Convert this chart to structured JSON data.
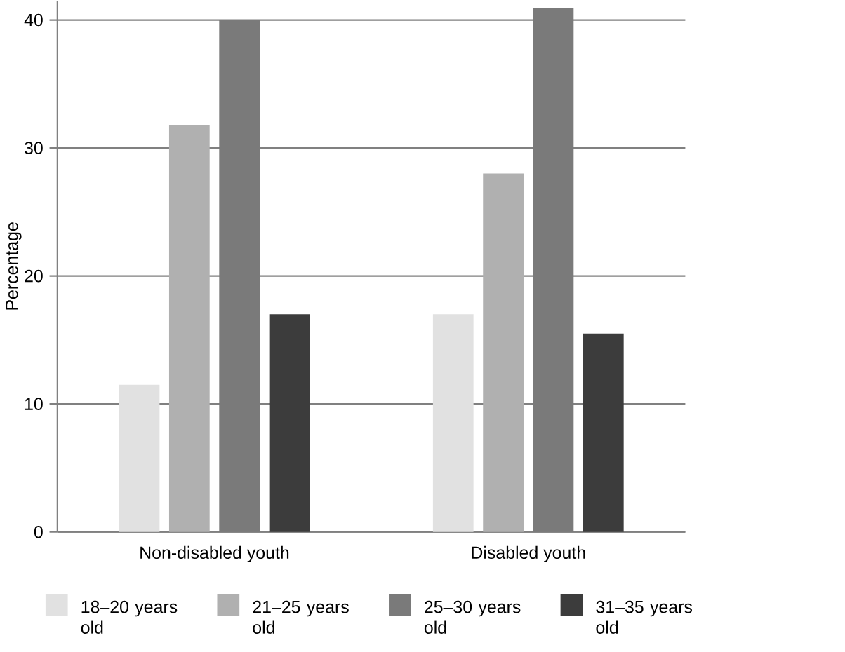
{
  "chart_data": {
    "type": "bar",
    "ylabel": "Percentage",
    "categories": [
      "Non-disabled youth",
      "Disabled youth"
    ],
    "series": [
      {
        "name": "18–20 years old",
        "color": "#e1e1e1",
        "values": [
          11.5,
          17
        ]
      },
      {
        "name": "21–25 years old",
        "color": "#b0b0b0",
        "values": [
          31.8,
          28
        ]
      },
      {
        "name": "25–30 years old",
        "color": "#7a7a7a",
        "values": [
          40,
          40.9
        ]
      },
      {
        "name": "31–35 years old",
        "color": "#3c3c3c",
        "values": [
          17,
          15.5
        ]
      }
    ],
    "ylim": [
      0,
      41.5
    ],
    "yticks": [
      0,
      10,
      20,
      30,
      40
    ],
    "grid": "y",
    "legend": "bottom"
  }
}
